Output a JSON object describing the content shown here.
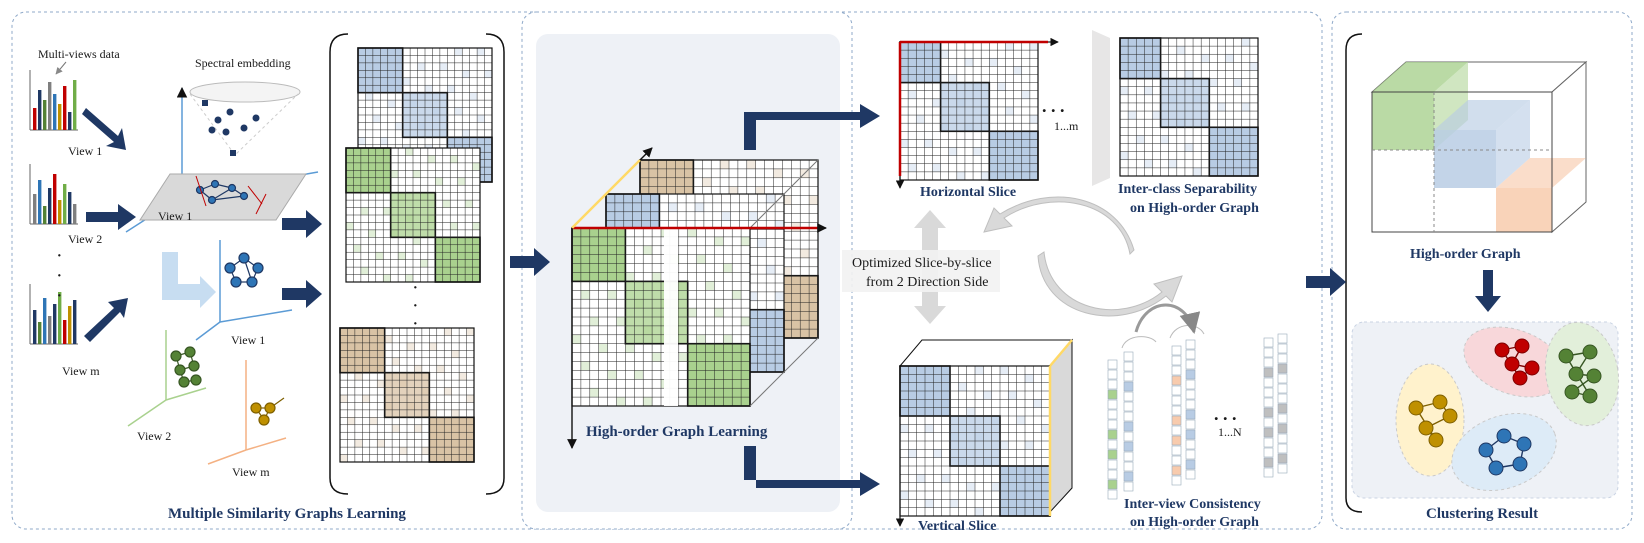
{
  "sections": {
    "left_title": "Multiple Similarity Graphs Learning",
    "middle_title": "High-order Graph Learning",
    "right_title": "Clustering Result"
  },
  "left": {
    "multiviews_label": "Multi-views data",
    "spectral_label": "Spectral embedding",
    "view_labels": [
      "View 1",
      "View 2",
      "View m"
    ],
    "plane_view1": "View 1",
    "plane_view2": "View 2",
    "axis_view1": "View 1",
    "axis_view2": "View 2",
    "axis_viewm": "View m",
    "dots": "·"
  },
  "slices": {
    "horizontal_label": "Horizontal Slice",
    "vertical_label": "Vertical Slice",
    "horizontal_range": "1...m",
    "vertical_range": "1...N",
    "ellipsis": ". . .",
    "interclass_line1": "Inter-class Separability",
    "interclass_line2": "on High-order Graph",
    "interview_line1": "Inter-view Consistency",
    "interview_line2": "on High-order Graph",
    "optimized_line1": "Optimized Slice-by-slice",
    "optimized_line2": "from 2 Direction Side"
  },
  "right": {
    "high_order_graph_label": "High-order Graph"
  },
  "colors": {
    "blue_block": "#b8cce4",
    "green_block": "#a9d18e",
    "tan_block": "#d9c3a5",
    "pink_block": "#f8cbad",
    "arrow": "#1f3864",
    "red": "#c00000",
    "yellow": "#ffd966"
  }
}
